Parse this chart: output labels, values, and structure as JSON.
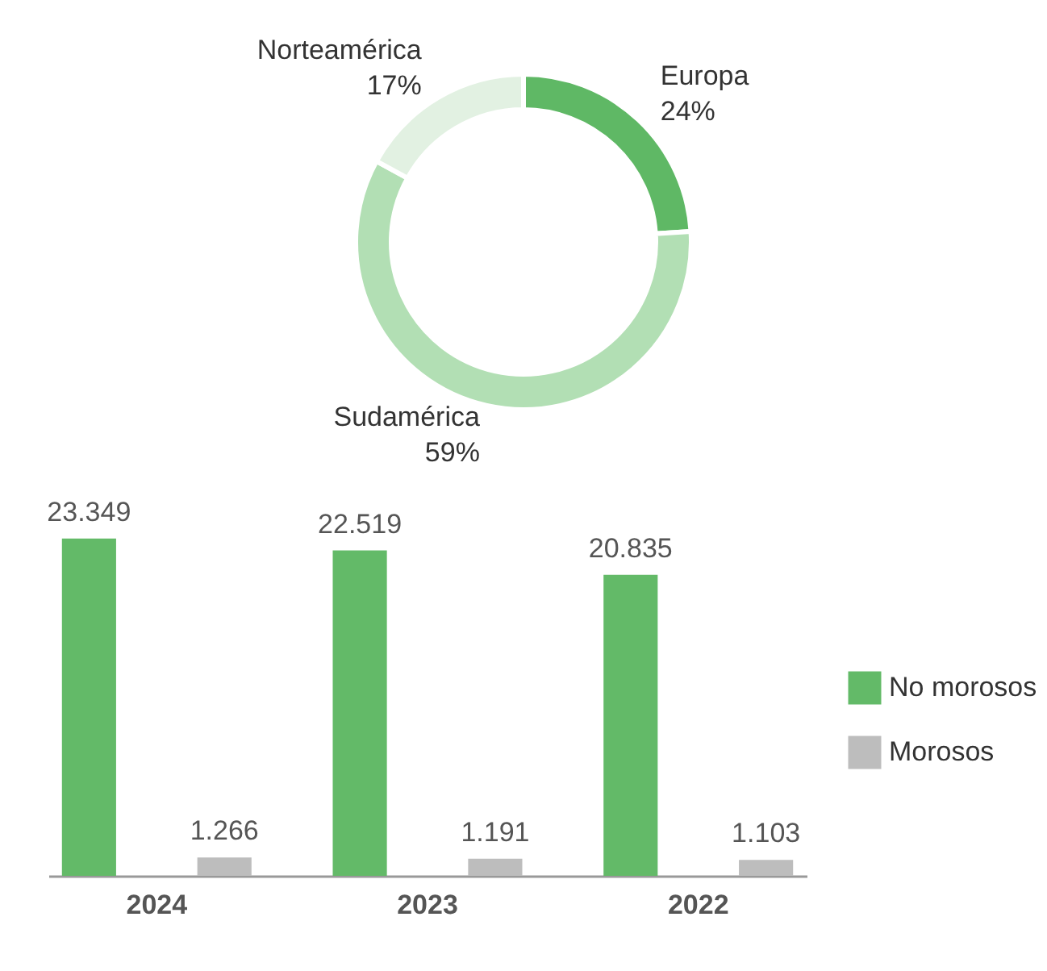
{
  "chart_data": [
    {
      "type": "donut",
      "categories": [
        "Europa",
        "Sudamérica",
        "Norteamérica"
      ],
      "values": [
        24,
        59,
        17
      ],
      "colors": [
        "#5fb865",
        "#b2dfb4",
        "#e2f1e2"
      ],
      "value_labels": [
        "24%",
        "59%",
        "17%"
      ]
    },
    {
      "type": "bar",
      "categories": [
        "2024",
        "2023",
        "2022"
      ],
      "legend": "right",
      "series": [
        {
          "name": "No morosos",
          "color": "#63ba68",
          "values": [
            23349,
            22519,
            20835
          ],
          "value_labels": [
            "23.349",
            "22.519",
            "20.835"
          ]
        },
        {
          "name": "Morosos",
          "color": "#bdbdbd",
          "values": [
            1266,
            1191,
            1103
          ],
          "value_labels": [
            "1.266",
            "1.191",
            "1.103"
          ]
        }
      ]
    }
  ]
}
